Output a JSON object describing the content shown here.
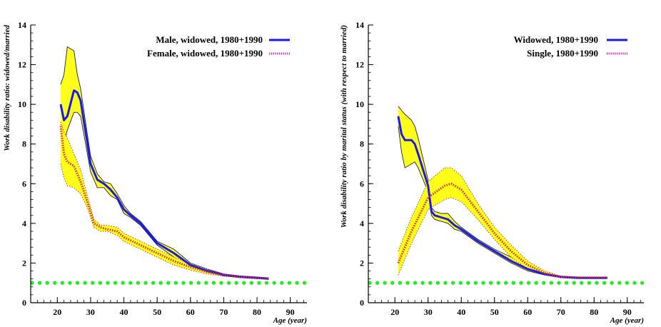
{
  "chart_data": [
    {
      "type": "line",
      "xlabel": "Age (year)",
      "ylabel": "Work disability ratio: widowed/married",
      "xlim": [
        12,
        95
      ],
      "ylim": [
        0,
        14
      ],
      "xticks": [
        20,
        30,
        40,
        50,
        60,
        70,
        80,
        90
      ],
      "yticks": [
        0,
        2,
        4,
        6,
        8,
        10,
        12,
        14
      ],
      "legend_position": "top-right",
      "reference_line": {
        "y": 1,
        "color": "#22ee22",
        "style": "dotted"
      },
      "series": [
        {
          "name": "Male, widowed, 1980+1990",
          "color": "#1a1aee",
          "style": "solid",
          "x": [
            21,
            22,
            23,
            25,
            26,
            27,
            30,
            32,
            34,
            36,
            38,
            40,
            42,
            45,
            50,
            55,
            60,
            65,
            70,
            75,
            80,
            83.5
          ],
          "y": [
            10.0,
            9.2,
            9.4,
            10.7,
            10.6,
            10.2,
            7.0,
            6.2,
            6.0,
            5.7,
            5.3,
            4.7,
            4.4,
            4.0,
            3.0,
            2.5,
            1.9,
            1.6,
            1.4,
            1.3,
            1.25,
            1.22
          ],
          "band_upper": [
            11.0,
            11.5,
            12.9,
            12.7,
            11.5,
            10.8,
            7.4,
            6.5,
            6.1,
            6.0,
            5.5,
            4.9,
            4.5,
            4.1,
            3.1,
            2.7,
            2.0,
            1.7,
            1.45,
            1.35,
            1.3,
            1.25
          ],
          "band_lower": [
            9.0,
            8.0,
            8.7,
            9.6,
            9.6,
            9.4,
            6.6,
            5.8,
            5.8,
            5.4,
            5.2,
            4.5,
            4.3,
            3.9,
            2.9,
            2.3,
            1.8,
            1.5,
            1.35,
            1.27,
            1.22,
            1.18
          ]
        },
        {
          "name": "Female, widowed, 1980+1990",
          "color": "#ee22cc",
          "style": "dotted",
          "x": [
            21,
            22,
            23,
            25,
            27,
            29,
            31,
            33,
            35,
            38,
            40,
            45,
            50,
            55,
            60,
            65,
            70,
            75,
            80,
            83.5
          ],
          "y": [
            8.9,
            7.5,
            7.1,
            6.9,
            6.1,
            5.1,
            4.0,
            3.8,
            3.7,
            3.6,
            3.3,
            2.9,
            2.5,
            2.1,
            1.8,
            1.55,
            1.4,
            1.3,
            1.25,
            1.2
          ],
          "band_upper": [
            9.1,
            8.6,
            8.3,
            7.5,
            6.7,
            5.4,
            4.2,
            3.9,
            3.9,
            3.8,
            3.5,
            3.1,
            2.7,
            2.3,
            1.95,
            1.65,
            1.45,
            1.35,
            1.3,
            1.25
          ],
          "band_lower": [
            7.0,
            6.3,
            5.9,
            5.8,
            5.5,
            4.8,
            3.8,
            3.6,
            3.6,
            3.4,
            3.1,
            2.7,
            2.3,
            1.9,
            1.65,
            1.45,
            1.35,
            1.27,
            1.22,
            1.17
          ]
        }
      ]
    },
    {
      "type": "line",
      "xlabel": "Age (year)",
      "ylabel": "Work disability ratio by marital status (with respect to married)",
      "xlim": [
        12,
        95
      ],
      "ylim": [
        0,
        14
      ],
      "xticks": [
        20,
        30,
        40,
        50,
        60,
        70,
        80,
        90
      ],
      "yticks": [
        0,
        2,
        4,
        6,
        8,
        10,
        12,
        14
      ],
      "legend_position": "top-right",
      "reference_line": {
        "y": 1,
        "color": "#22ee22",
        "style": "dotted"
      },
      "series": [
        {
          "name": "Widowed, 1980+1990",
          "color": "#1a1aee",
          "style": "solid",
          "x": [
            21,
            22,
            23,
            25,
            26,
            27,
            30,
            31,
            32,
            34,
            36,
            38,
            40,
            45,
            50,
            55,
            60,
            65,
            70,
            75,
            80,
            84
          ],
          "y": [
            9.4,
            8.5,
            8.2,
            8.2,
            8.0,
            7.5,
            5.9,
            4.6,
            4.4,
            4.3,
            4.2,
            3.9,
            3.7,
            3.1,
            2.6,
            2.1,
            1.7,
            1.45,
            1.3,
            1.25,
            1.25,
            1.25
          ],
          "band_upper": [
            9.9,
            9.7,
            9.5,
            9.2,
            8.9,
            8.3,
            6.2,
            4.8,
            4.6,
            4.5,
            4.5,
            4.1,
            3.8,
            3.2,
            2.7,
            2.3,
            1.8,
            1.5,
            1.33,
            1.28,
            1.28,
            1.28
          ],
          "band_lower": [
            8.9,
            7.6,
            6.8,
            7.0,
            7.1,
            6.8,
            5.6,
            4.4,
            4.2,
            4.1,
            4.0,
            3.7,
            3.6,
            3.0,
            2.5,
            2.0,
            1.6,
            1.4,
            1.27,
            1.22,
            1.22,
            1.22
          ]
        },
        {
          "name": "Single, 1980+1990",
          "color": "#ee22cc",
          "style": "dotted",
          "x": [
            21,
            25,
            30,
            35,
            37,
            40,
            45,
            50,
            55,
            60,
            65,
            70,
            75,
            80,
            84
          ],
          "y": [
            2.0,
            3.6,
            5.3,
            5.9,
            6.0,
            5.7,
            4.6,
            3.5,
            2.6,
            1.9,
            1.5,
            1.3,
            1.27,
            1.27,
            1.27
          ],
          "band_upper": [
            2.6,
            4.3,
            6.1,
            6.8,
            6.8,
            6.4,
            5.0,
            3.8,
            2.9,
            2.1,
            1.6,
            1.35,
            1.3,
            1.3,
            1.3
          ],
          "band_lower": [
            1.4,
            3.0,
            4.7,
            5.2,
            5.3,
            5.1,
            4.2,
            3.2,
            2.3,
            1.7,
            1.4,
            1.27,
            1.24,
            1.24,
            1.24
          ]
        }
      ]
    }
  ]
}
